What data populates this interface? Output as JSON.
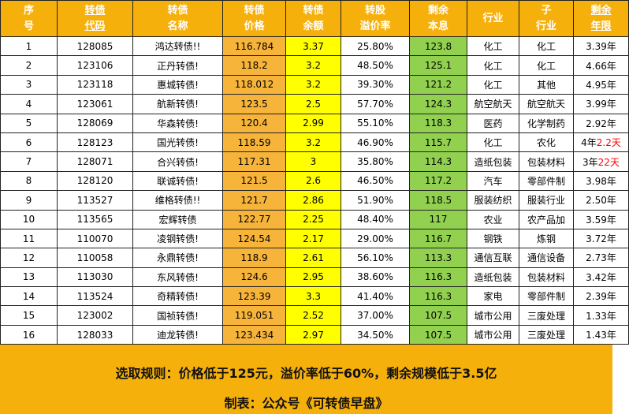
{
  "headers": [
    {
      "l1": "序",
      "l2": "号",
      "underline": false
    },
    {
      "l1": "转债",
      "l2": "代码",
      "underline": true
    },
    {
      "l1": "转债",
      "l2": "名称",
      "underline": false
    },
    {
      "l1": "转债",
      "l2": "价格",
      "underline": false
    },
    {
      "l1": "转债",
      "l2": "余额",
      "underline": false
    },
    {
      "l1": "转股",
      "l2": "溢价率",
      "underline": false
    },
    {
      "l1": "剩余",
      "l2": "本息",
      "underline": false
    },
    {
      "l1": "行业",
      "l2": "",
      "underline": false
    },
    {
      "l1": "子",
      "l2": "行业",
      "underline": false
    },
    {
      "l1": "剩余",
      "l2": "年限",
      "underline": true
    }
  ],
  "rows": [
    {
      "no": "1",
      "code": "128085",
      "name": "鸿达转债!!",
      "price": "116.784",
      "balance": "3.37",
      "premium": "25.80%",
      "remain": "123.8",
      "industry": "化工",
      "sub": "化工",
      "years": "3.39年"
    },
    {
      "no": "2",
      "code": "123106",
      "name": "正丹转债!",
      "price": "118.2",
      "balance": "3.2",
      "premium": "48.50%",
      "remain": "125.1",
      "industry": "化工",
      "sub": "化工",
      "years": "4.66年"
    },
    {
      "no": "3",
      "code": "123118",
      "name": "惠城转债!",
      "price": "118.012",
      "balance": "3.2",
      "premium": "39.30%",
      "remain": "121.2",
      "industry": "化工",
      "sub": "其他",
      "years": "4.95年"
    },
    {
      "no": "4",
      "code": "123061",
      "name": "航新转债!",
      "price": "123.5",
      "balance": "2.5",
      "premium": "57.70%",
      "remain": "124.3",
      "industry": "航空航天",
      "sub": "航空航天",
      "years": "3.99年"
    },
    {
      "no": "5",
      "code": "128069",
      "name": "华森转债!",
      "price": "120.4",
      "balance": "2.99",
      "premium": "55.10%",
      "remain": "118.3",
      "industry": "医药",
      "sub": "化学制药",
      "years": "2.92年"
    },
    {
      "no": "6",
      "code": "128123",
      "name": "国光转债!",
      "price": "118.59",
      "balance": "3.2",
      "premium": "46.90%",
      "remain": "115.7",
      "industry": "化工",
      "sub": "农化",
      "years": "4年",
      "years_red": "2.2天"
    },
    {
      "no": "7",
      "code": "128071",
      "name": "合兴转债!",
      "price": "117.31",
      "balance": "3",
      "premium": "35.80%",
      "remain": "114.3",
      "industry": "造纸包装",
      "sub": "包装材料",
      "years": "3年",
      "years_red": "22天"
    },
    {
      "no": "8",
      "code": "128120",
      "name": "联诚转债!",
      "price": "121.5",
      "balance": "2.6",
      "premium": "46.50%",
      "remain": "117.2",
      "industry": "汽车",
      "sub": "零部件制",
      "years": "3.98年"
    },
    {
      "no": "9",
      "code": "113527",
      "name": "维格转债!!",
      "price": "121.7",
      "balance": "2.86",
      "premium": "51.90%",
      "remain": "118.5",
      "industry": "服装纺织",
      "sub": "服装行业",
      "years": "2.50年"
    },
    {
      "no": "10",
      "code": "113565",
      "name": "宏辉转债",
      "price": "122.77",
      "balance": "2.25",
      "premium": "48.40%",
      "remain": "117",
      "industry": "农业",
      "sub": "农产品加",
      "years": "3.59年"
    },
    {
      "no": "11",
      "code": "110070",
      "name": "凌钢转债!",
      "price": "124.54",
      "balance": "2.17",
      "premium": "29.00%",
      "remain": "116.7",
      "industry": "钢铁",
      "sub": "炼钢",
      "years": "3.72年"
    },
    {
      "no": "12",
      "code": "110058",
      "name": "永鼎转债!",
      "price": "118.9",
      "balance": "2.61",
      "premium": "56.10%",
      "remain": "113.3",
      "industry": "通信互联",
      "sub": "通信设备",
      "years": "2.73年"
    },
    {
      "no": "13",
      "code": "113030",
      "name": "东风转债!",
      "price": "124.6",
      "balance": "2.95",
      "premium": "38.60%",
      "remain": "116.3",
      "industry": "造纸包装",
      "sub": "包装材料",
      "years": "3.42年"
    },
    {
      "no": "14",
      "code": "113524",
      "name": "奇精转债!",
      "price": "123.39",
      "balance": "3.3",
      "premium": "41.40%",
      "remain": "116.3",
      "industry": "家电",
      "sub": "零部件制",
      "years": "2.39年"
    },
    {
      "no": "15",
      "code": "123002",
      "name": "国祯转债!",
      "price": "119.051",
      "balance": "2.52",
      "premium": "37.00%",
      "remain": "107.5",
      "industry": "城市公用",
      "sub": "三废处理",
      "years": "1.33年"
    },
    {
      "no": "16",
      "code": "128033",
      "name": "迪龙转债!",
      "price": "123.434",
      "balance": "2.97",
      "premium": "34.50%",
      "remain": "107.5",
      "industry": "城市公用",
      "sub": "三废处理",
      "years": "1.43年"
    }
  ],
  "footer": {
    "rule": "选取规则：价格低于125元，溢价率低于60%，剩余规模低于3.5亿",
    "credit": "制表：公众号《可转债早盘》"
  }
}
